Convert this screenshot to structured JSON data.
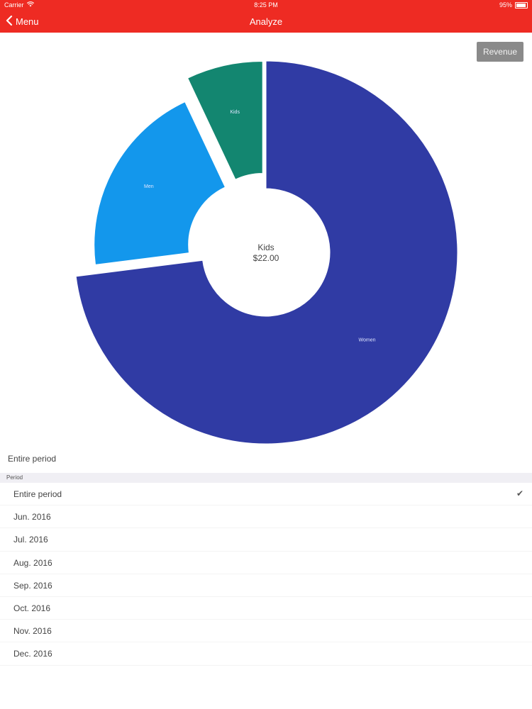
{
  "status_bar": {
    "carrier": "Carrier",
    "time": "8:25 PM",
    "battery": "95%"
  },
  "nav": {
    "back_label": "Menu",
    "title": "Analyze"
  },
  "toolbar": {
    "revenue_label": "Revenue"
  },
  "colors": {
    "accent": "#ee2b23",
    "women": "#303ba4",
    "men": "#1397ec",
    "kids": "#138670"
  },
  "chart_data": {
    "type": "pie",
    "slices": [
      {
        "label": "Women",
        "value": 0.73,
        "color": "#303ba4",
        "exploded": false
      },
      {
        "label": "Men",
        "value": 0.2,
        "color": "#1397ec",
        "exploded": true
      },
      {
        "label": "Kids",
        "value": 0.07,
        "color": "#138670",
        "exploded": true
      }
    ],
    "center": {
      "label": "Kids",
      "value": "$22.00"
    }
  },
  "period": {
    "current": "Entire period",
    "section_header": "Period",
    "selected": "Entire period",
    "options": [
      "Entire period",
      "Jun. 2016",
      "Jul. 2016",
      "Aug. 2016",
      "Sep. 2016",
      "Oct. 2016",
      "Nov. 2016",
      "Dec. 2016"
    ]
  }
}
